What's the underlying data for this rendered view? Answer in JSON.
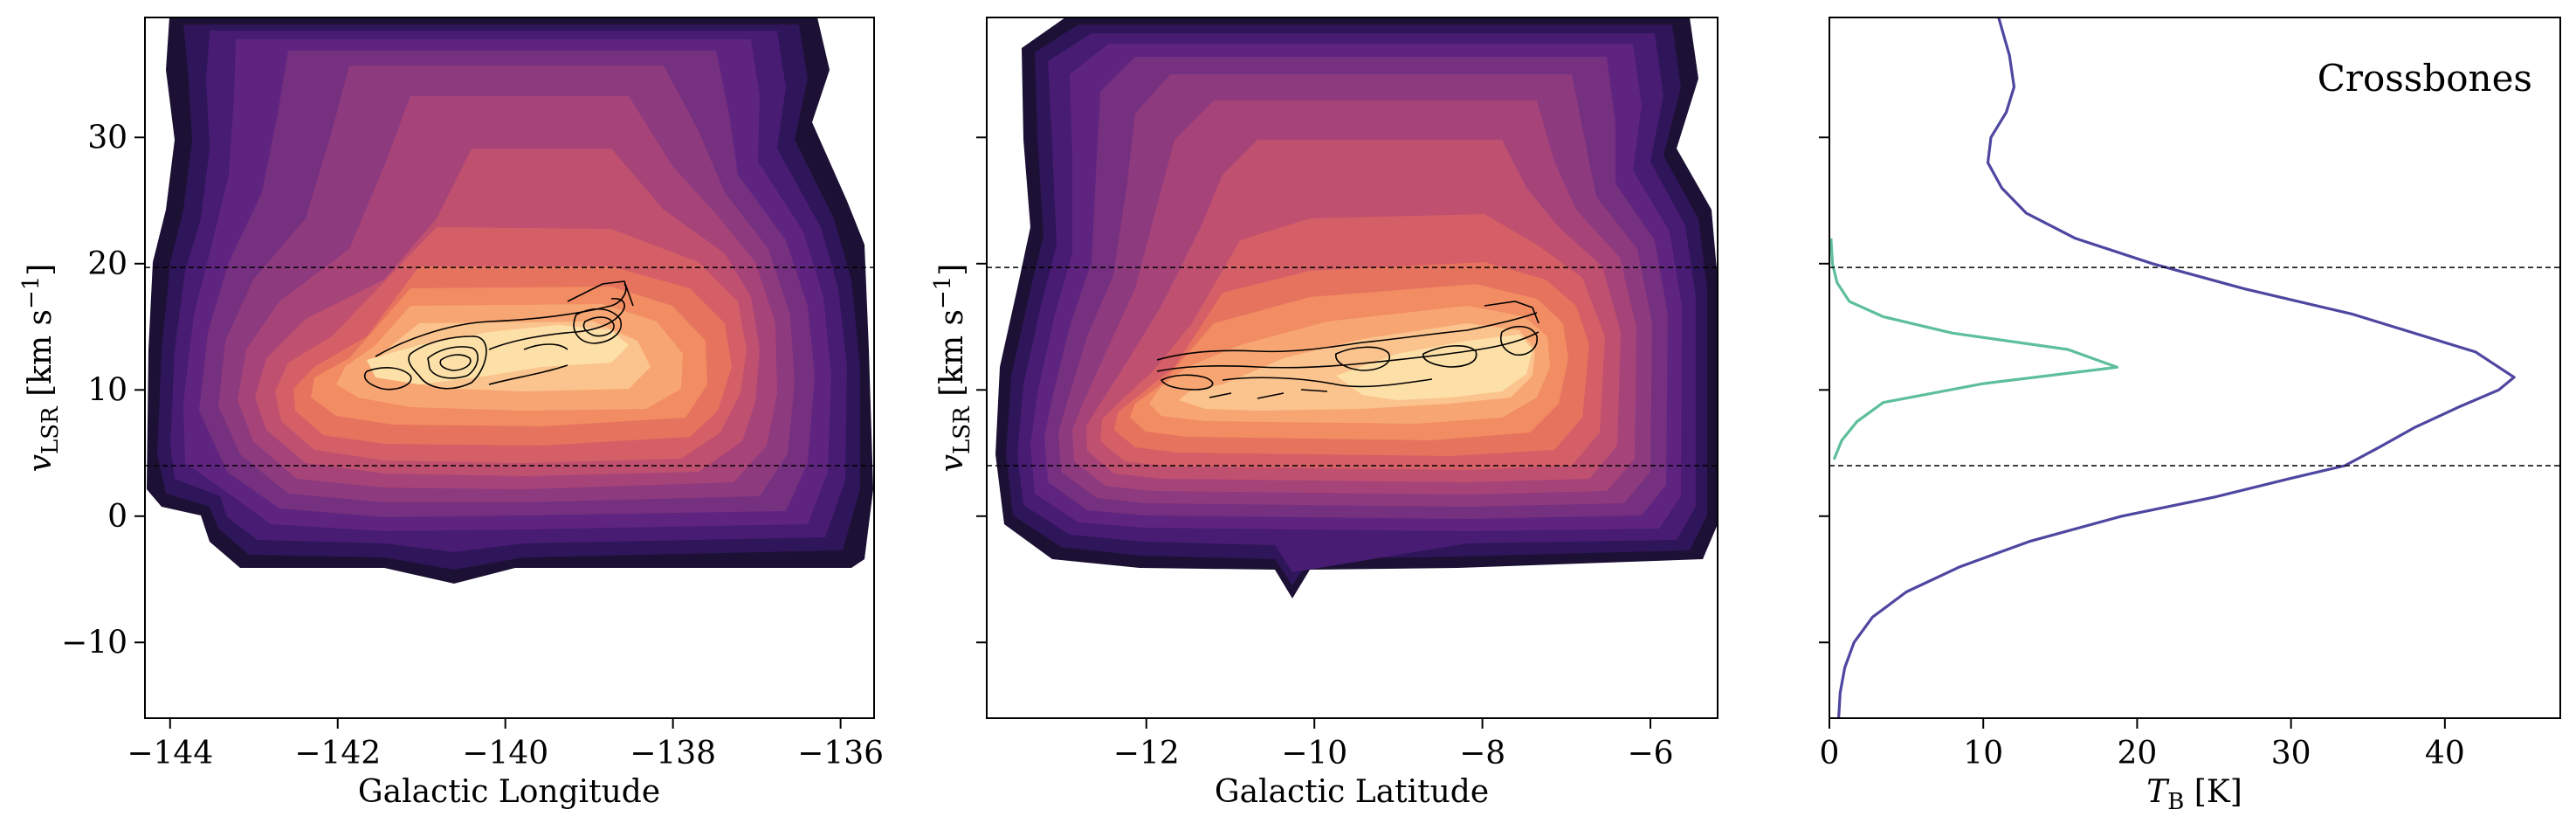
{
  "chart_data": [
    {
      "type": "heatmap",
      "xlabel": "Galactic Longitude",
      "ylabel_main": "v",
      "ylabel_sub": "LSR",
      "ylabel_units": " [km s",
      "ylabel_exp": "−1",
      "ylabel_close": "]",
      "xlim": [
        -144.3,
        -135.6
      ],
      "ylim": [
        -16,
        39.5
      ],
      "xticks": [
        -144,
        -142,
        -140,
        -138,
        -136
      ],
      "xtick_labels": [
        "−144",
        "−142",
        "−140",
        "−138",
        "−136"
      ],
      "yticks": [
        -10,
        0,
        10,
        20,
        30
      ],
      "ytick_labels": [
        "−10",
        "0",
        "10",
        "20",
        "30"
      ],
      "hlines": [
        19.7,
        4.0
      ],
      "emission_peak": {
        "x": -140.6,
        "y": 11.5
      },
      "colormap": "magma",
      "contour_line_color": "#000000"
    },
    {
      "type": "heatmap",
      "xlabel": "Galactic Latitude",
      "ylabel_main": "v",
      "ylabel_sub": "LSR",
      "ylabel_units": " [km s",
      "ylabel_exp": "−1",
      "ylabel_close": "]",
      "xlim": [
        -13.9,
        -5.2
      ],
      "ylim": [
        -16,
        39.5
      ],
      "xticks": [
        -12,
        -10,
        -8,
        -6
      ],
      "xtick_labels": [
        "−12",
        "−10",
        "−8",
        "−6"
      ],
      "yticks": [
        -10,
        0,
        10,
        20,
        30
      ],
      "hlines": [
        19.7,
        4.0
      ],
      "emission_peak": {
        "x": -9.5,
        "y": 11.5
      },
      "colormap": "magma",
      "contour_line_color": "#000000"
    },
    {
      "type": "line",
      "xlabel_main": "T",
      "xlabel_sub": "B",
      "xlabel_units": " [K]",
      "annotation": "Crossbones",
      "xlim": [
        0,
        47.5
      ],
      "ylim": [
        -16,
        39.5
      ],
      "xticks": [
        0,
        10,
        20,
        30,
        40
      ],
      "xtick_labels": [
        "0",
        "10",
        "20",
        "30",
        "40"
      ],
      "yticks": [
        -10,
        0,
        10,
        20,
        30
      ],
      "hlines": [
        19.7,
        4.0
      ],
      "series": [
        {
          "color": "#4e46a0",
          "points": [
            [
              0.6,
              -16
            ],
            [
              0.7,
              -14
            ],
            [
              1.0,
              -12
            ],
            [
              1.6,
              -10
            ],
            [
              2.8,
              -8
            ],
            [
              5.0,
              -6
            ],
            [
              8.5,
              -4
            ],
            [
              13.0,
              -2
            ],
            [
              19.0,
              0
            ],
            [
              25.0,
              1.5
            ],
            [
              30.0,
              3.0
            ],
            [
              33.5,
              4.0
            ],
            [
              35.8,
              5.5
            ],
            [
              38.0,
              7.0
            ],
            [
              41.0,
              8.7
            ],
            [
              43.5,
              10.0
            ],
            [
              44.5,
              11.0
            ],
            [
              42.0,
              13.0
            ],
            [
              34.0,
              16.0
            ],
            [
              27.0,
              18.0
            ],
            [
              21.0,
              20.0
            ],
            [
              16.0,
              22.0
            ],
            [
              12.8,
              24.0
            ],
            [
              11.2,
              26.0
            ],
            [
              10.3,
              28.0
            ],
            [
              10.5,
              30.0
            ],
            [
              11.5,
              32.0
            ],
            [
              12.0,
              34.0
            ],
            [
              11.7,
              36.5
            ],
            [
              11.0,
              39.5
            ]
          ]
        },
        {
          "color": "#5dbf9a",
          "points": [
            [
              0.3,
              4.5
            ],
            [
              0.8,
              6.0
            ],
            [
              1.8,
              7.5
            ],
            [
              3.5,
              9.0
            ],
            [
              10.0,
              10.5
            ],
            [
              18.7,
              11.8
            ],
            [
              15.5,
              13.2
            ],
            [
              8.0,
              14.5
            ],
            [
              3.5,
              15.8
            ],
            [
              1.3,
              17.0
            ],
            [
              0.5,
              18.5
            ],
            [
              0.2,
              20.0
            ],
            [
              0.1,
              22.0
            ]
          ]
        }
      ]
    }
  ]
}
